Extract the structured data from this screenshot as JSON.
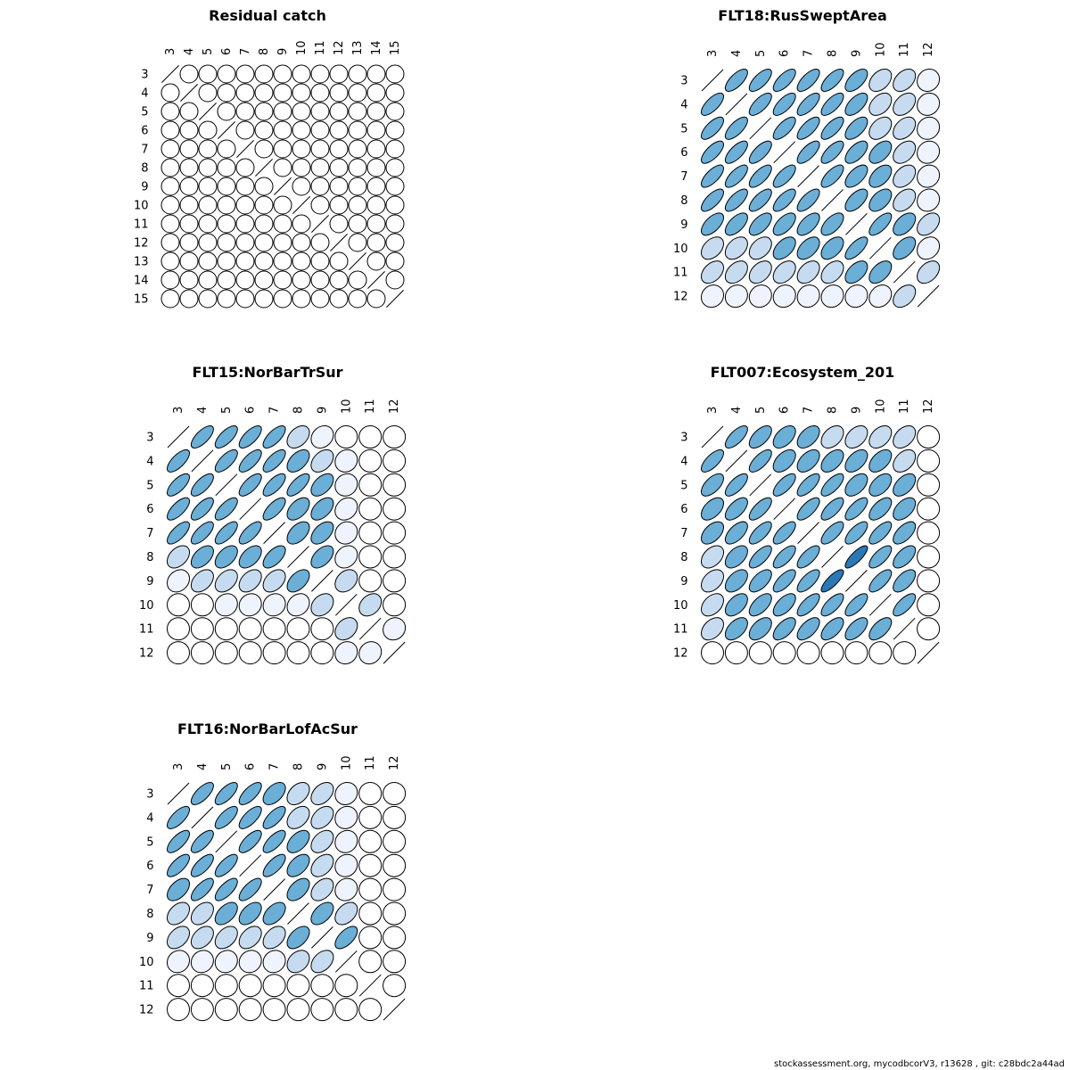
{
  "footer": "stockassessment.org, mycodbcorV3, r13628 , git: c28bdc2a44ad",
  "colors": {
    "strong": "#2b78b6",
    "medium": "#6baed6",
    "light": "#c6dbef",
    "faint": "#eef3fd",
    "outline": "#000000"
  },
  "chart_data": [
    {
      "type": "correlation-ellipse",
      "title": "Residual catch",
      "labels": [
        "3",
        "4",
        "5",
        "6",
        "7",
        "8",
        "9",
        "10",
        "11",
        "12",
        "13",
        "14",
        "15"
      ],
      "level_rows": [
        "d000000000000",
        "0d00000000000",
        "00d0000000000",
        "000d000000000",
        "0000d00000000",
        "00000d0000000",
        "000000d000000",
        "0000000d00000",
        "00000000d0000",
        "000000000d000",
        "0000000000d00",
        "00000000000d0",
        "000000000000d"
      ]
    },
    {
      "type": "correlation-ellipse",
      "title": "FLT18:RusSweptArea",
      "labels": [
        "3",
        "4",
        "5",
        "6",
        "7",
        "8",
        "9",
        "10",
        "11",
        "12"
      ],
      "level_rows": [
        "d777776441",
        "7d77776441",
        "77d7776441",
        "777d776541",
        "7777d76541",
        "77777d6541",
        "666666d754",
        "4445557d52",
        "44444455d4",
        "111111124d"
      ]
    },
    {
      "type": "correlation-ellipse",
      "title": "FLT15:NorBarTrSur",
      "labels": [
        "3",
        "4",
        "5",
        "6",
        "7",
        "8",
        "9",
        "10",
        "11",
        "12"
      ],
      "level_rows": [
        "d777742000",
        "7d77754100",
        "77d7775100",
        "777d755200",
        "7777d55100",
        "45556d5200",
        "244445d300",
        "0011123d30",
        "00000003d1",
        "000000011d"
      ]
    },
    {
      "type": "correlation-ellipse",
      "title": "FLT007:Ecosystem_201",
      "labels": [
        "3",
        "4",
        "5",
        "6",
        "7",
        "8",
        "9",
        "10",
        "11",
        "12"
      ],
      "level_rows": [
        "d765544440",
        "7d75555540",
        "67d7775550",
        "567d777650",
        "5677d77760",
        "45777d8760",
        "456778d760",
        "4566777d70",
        "45566666d0",
        "000000000d"
      ]
    },
    {
      "type": "correlation-ellipse",
      "title": "FLT16:NorBarLofAcSur",
      "labels": [
        "3",
        "4",
        "5",
        "6",
        "7",
        "8",
        "9",
        "10",
        "11",
        "12"
      ],
      "level_rows": [
        "d777544100",
        "7d77744100",
        "77d7754100",
        "777d754100",
        "5777d54100",
        "44555d5400",
        "444445d600",
        "1111134d00",
        "00000000d0",
        "000000000d"
      ]
    }
  ]
}
